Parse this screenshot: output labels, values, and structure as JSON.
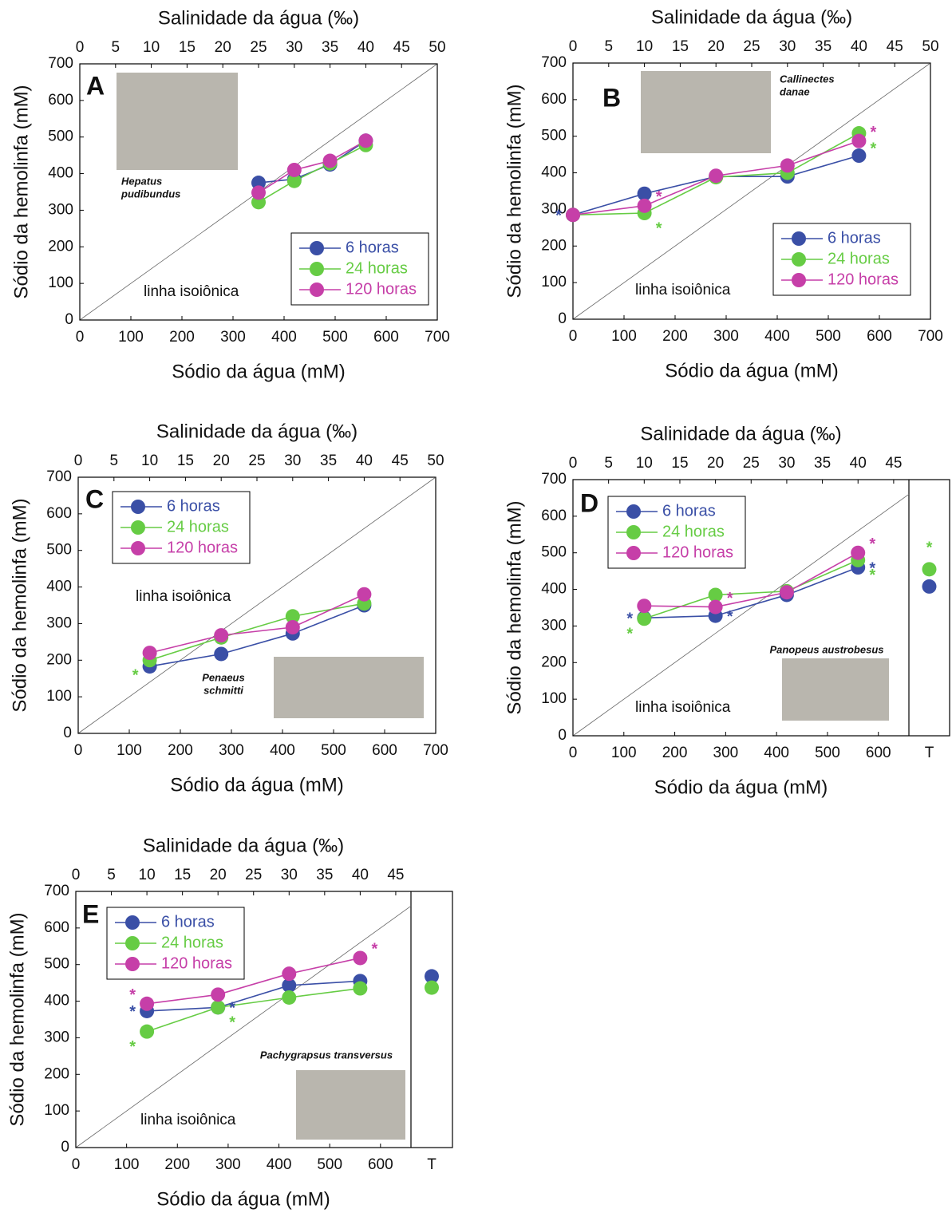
{
  "chart_data": [
    {
      "type": "line",
      "panel": "A",
      "top_axis_label": "Salinidade da água (‰)",
      "xlabel": "Sódio da água (mM)",
      "ylabel": "Sódio da hemolinfa (mM)",
      "x": [
        350,
        420,
        490,
        560
      ],
      "xlim": [
        0,
        700
      ],
      "xticks": [
        0,
        100,
        200,
        300,
        400,
        500,
        600,
        700
      ],
      "ylim": [
        0,
        700
      ],
      "yticks": [
        0,
        100,
        200,
        300,
        400,
        500,
        600,
        700
      ],
      "x2lim": [
        0,
        50
      ],
      "x2ticks": [
        0,
        5,
        10,
        15,
        20,
        25,
        30,
        35,
        40,
        45,
        50
      ],
      "series": [
        {
          "name": "6 horas",
          "color": "#3a4fa6",
          "values": [
            375,
            385,
            425,
            490
          ],
          "significance": [
            null,
            null,
            null,
            null
          ]
        },
        {
          "name": "24 horas",
          "color": "#66cc44",
          "values": [
            322,
            380,
            428,
            478
          ],
          "significance": [
            null,
            null,
            null,
            null
          ]
        },
        {
          "name": "120 horas",
          "color": "#c63fa8",
          "values": [
            348,
            410,
            435,
            490
          ],
          "significance": [
            null,
            null,
            null,
            null
          ]
        }
      ],
      "legend": "lower right",
      "species": [
        "Hepatus",
        "pudibundus"
      ],
      "isoline_label": "linha isoiônica"
    },
    {
      "type": "line",
      "panel": "B",
      "top_axis_label": "Salinidade da água (‰)",
      "xlabel": "Sódio da água (mM)",
      "ylabel": "Sódio da hemolinfa (mM)",
      "x": [
        0,
        140,
        280,
        420,
        560
      ],
      "xlim": [
        0,
        700
      ],
      "xticks": [
        0,
        100,
        200,
        300,
        400,
        500,
        600,
        700
      ],
      "ylim": [
        0,
        700
      ],
      "yticks": [
        0,
        100,
        200,
        300,
        400,
        500,
        600,
        700
      ],
      "x2lim": [
        0,
        50
      ],
      "x2ticks": [
        0,
        5,
        10,
        15,
        20,
        25,
        30,
        35,
        40,
        45,
        50
      ],
      "series": [
        {
          "name": "6 horas",
          "color": "#3a4fa6",
          "values": [
            285,
            343,
            390,
            390,
            447
          ],
          "significance": [
            "*",
            null,
            null,
            null,
            null
          ]
        },
        {
          "name": "24 horas",
          "color": "#66cc44",
          "values": [
            285,
            290,
            388,
            400,
            508
          ],
          "significance": [
            null,
            "*",
            null,
            null,
            "*"
          ]
        },
        {
          "name": "120 horas",
          "color": "#c63fa8",
          "values": [
            285,
            310,
            392,
            420,
            487
          ],
          "significance": [
            null,
            "*",
            null,
            null,
            "*"
          ]
        }
      ],
      "legend": "lower right",
      "species": [
        "Callinectes",
        "danae"
      ],
      "isoline_label": "linha isoiônica"
    },
    {
      "type": "line",
      "panel": "C",
      "top_axis_label": "Salinidade da água (‰)",
      "xlabel": "Sódio da água (mM)",
      "ylabel": "Sódio da hemolinfa (mM)",
      "x": [
        140,
        280,
        420,
        560
      ],
      "xlim": [
        0,
        700
      ],
      "xticks": [
        0,
        100,
        200,
        300,
        400,
        500,
        600,
        700
      ],
      "ylim": [
        0,
        700
      ],
      "yticks": [
        0,
        100,
        200,
        300,
        400,
        500,
        600,
        700
      ],
      "x2lim": [
        0,
        50
      ],
      "x2ticks": [
        0,
        5,
        10,
        15,
        20,
        25,
        30,
        35,
        40,
        45,
        50
      ],
      "series": [
        {
          "name": "6 horas",
          "color": "#3a4fa6",
          "values": [
            183,
            217,
            273,
            350
          ],
          "significance": [
            null,
            null,
            null,
            null
          ]
        },
        {
          "name": "24 horas",
          "color": "#66cc44",
          "values": [
            200,
            262,
            320,
            355
          ],
          "significance": [
            "*",
            null,
            null,
            null
          ]
        },
        {
          "name": "120 horas",
          "color": "#c63fa8",
          "values": [
            220,
            268,
            290,
            380
          ],
          "significance": [
            null,
            null,
            null,
            null
          ]
        }
      ],
      "legend": "upper left",
      "species": [
        "Penaeus",
        "schmitti"
      ],
      "isoline_label": "linha isoiônica"
    },
    {
      "type": "line",
      "panel": "D",
      "top_axis_label": "Salinidade da água (‰)",
      "xlabel": "Sódio da água (mM)",
      "ylabel": "Sódio da hemolinfa (mM)",
      "x": [
        140,
        280,
        420,
        560
      ],
      "xlim": [
        0,
        660
      ],
      "xticks": [
        0,
        100,
        200,
        300,
        400,
        500,
        600
      ],
      "ylim": [
        0,
        700
      ],
      "yticks": [
        0,
        100,
        200,
        300,
        400,
        500,
        600,
        700
      ],
      "x2lim": [
        0,
        47.14
      ],
      "x2ticks": [
        0,
        5,
        10,
        15,
        20,
        25,
        30,
        35,
        40,
        45
      ],
      "extra_category": "T",
      "series": [
        {
          "name": "6 horas",
          "color": "#3a4fa6",
          "values": [
            322,
            328,
            385,
            460
          ],
          "significance": [
            "*",
            "*",
            null,
            "*"
          ],
          "extra_value": 408,
          "extra_significance": null
        },
        {
          "name": "24 horas",
          "color": "#66cc44",
          "values": [
            320,
            385,
            395,
            480
          ],
          "significance": [
            "*",
            null,
            null,
            "*"
          ],
          "extra_value": 455,
          "extra_significance": "*"
        },
        {
          "name": "120 horas",
          "color": "#c63fa8",
          "values": [
            355,
            352,
            392,
            500
          ],
          "significance": [
            null,
            "*",
            null,
            "*"
          ],
          "extra_value": null,
          "extra_significance": null
        }
      ],
      "legend": "upper left",
      "species": [
        "Panopeus austrobesus"
      ],
      "isoline_label": "linha isoiônica"
    },
    {
      "type": "line",
      "panel": "E",
      "top_axis_label": "Salinidade da água (‰)",
      "xlabel": "Sódio da água (mM)",
      "ylabel": "Sódio da hemolinfa (mM)",
      "x": [
        140,
        280,
        420,
        560
      ],
      "xlim": [
        0,
        660
      ],
      "xticks": [
        0,
        100,
        200,
        300,
        400,
        500,
        600
      ],
      "ylim": [
        0,
        700
      ],
      "yticks": [
        0,
        100,
        200,
        300,
        400,
        500,
        600,
        700
      ],
      "x2lim": [
        0,
        47.14
      ],
      "x2ticks": [
        0,
        5,
        10,
        15,
        20,
        25,
        30,
        35,
        40,
        45
      ],
      "extra_category": "T",
      "series": [
        {
          "name": "6 horas",
          "color": "#3a4fa6",
          "values": [
            373,
            383,
            443,
            455
          ],
          "significance": [
            "*",
            "*",
            null,
            null
          ],
          "extra_value": 468,
          "extra_significance": null
        },
        {
          "name": "24 horas",
          "color": "#66cc44",
          "values": [
            317,
            383,
            410,
            435
          ],
          "significance": [
            "*",
            "*",
            null,
            null
          ],
          "extra_value": 437,
          "extra_significance": null
        },
        {
          "name": "120 horas",
          "color": "#c63fa8",
          "values": [
            393,
            418,
            475,
            518
          ],
          "significance": [
            "*",
            null,
            null,
            "*"
          ],
          "extra_value": null,
          "extra_significance": null
        }
      ],
      "legend": "upper left",
      "species": [
        "Pachygrapsus transversus"
      ],
      "isoline_label": "linha isoiônica"
    }
  ]
}
